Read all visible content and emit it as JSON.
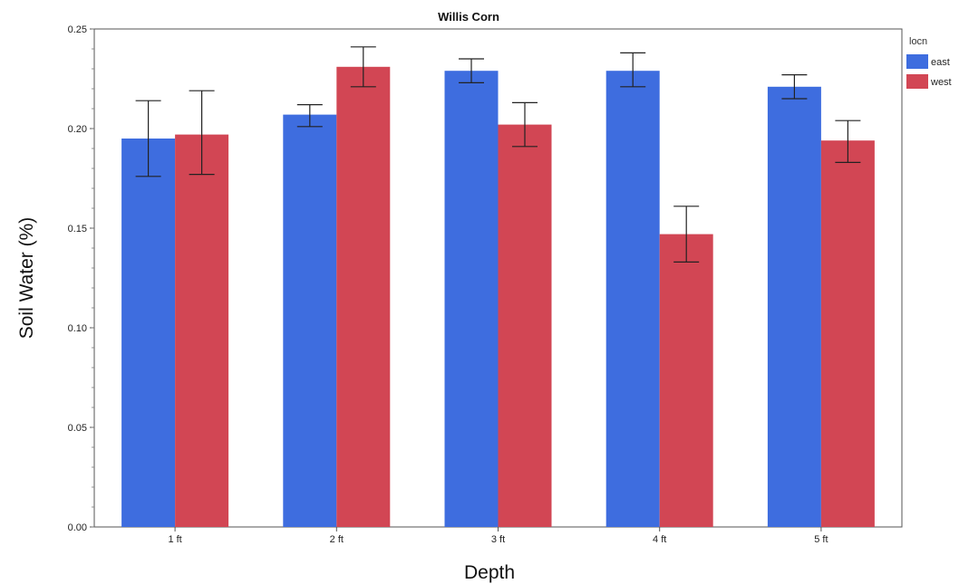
{
  "chart_data": {
    "type": "bar",
    "title": "Willis Corn",
    "xlabel": "Depth",
    "ylabel": "Soil Water (%)",
    "categories": [
      "1 ft",
      "2 ft",
      "3 ft",
      "4 ft",
      "5 ft"
    ],
    "ylim": [
      0,
      0.25
    ],
    "yticks": [
      "0.00",
      "0.05",
      "0.10",
      "0.15",
      "0.20",
      "0.25"
    ],
    "legend": {
      "title": "locn",
      "position": "top-right"
    },
    "grid": false,
    "error_bars": true,
    "series": [
      {
        "name": "east",
        "color": "#3e6ddf",
        "values": [
          0.195,
          0.207,
          0.229,
          0.229,
          0.221
        ],
        "err_low": [
          0.176,
          0.201,
          0.223,
          0.221,
          0.215
        ],
        "err_high": [
          0.214,
          0.212,
          0.235,
          0.238,
          0.227
        ]
      },
      {
        "name": "west",
        "color": "#d24654",
        "values": [
          0.197,
          0.231,
          0.202,
          0.147,
          0.194
        ],
        "err_low": [
          0.177,
          0.221,
          0.191,
          0.133,
          0.183
        ],
        "err_high": [
          0.219,
          0.241,
          0.213,
          0.161,
          0.204
        ]
      }
    ]
  }
}
